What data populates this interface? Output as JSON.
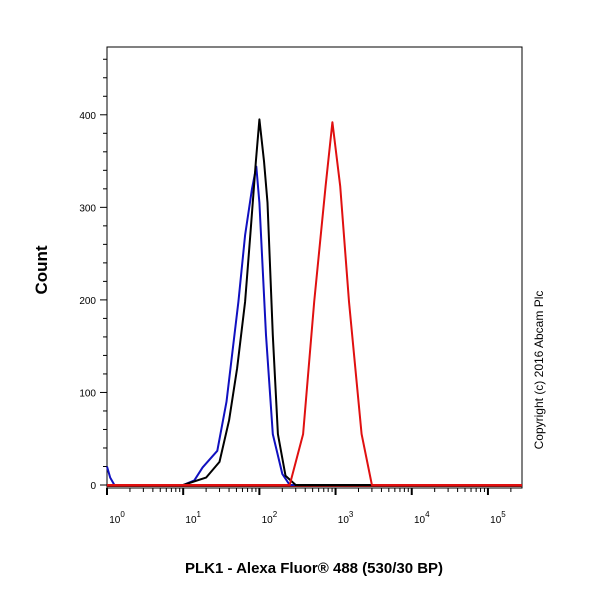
{
  "chart_data": {
    "type": "line",
    "xlabel": "PLK1 - Alexa Fluor® 488 (530/30 BP)",
    "ylabel": "Count",
    "x_scale": "log",
    "xlim": [
      1,
      280000
    ],
    "ylim": [
      0,
      470
    ],
    "x_ticks": [
      {
        "base": "10",
        "exp": "0"
      },
      {
        "base": "10",
        "exp": "1"
      },
      {
        "base": "10",
        "exp": "2"
      },
      {
        "base": "10",
        "exp": "3"
      },
      {
        "base": "10",
        "exp": "4"
      },
      {
        "base": "10",
        "exp": "5"
      }
    ],
    "y_ticks": [
      "0",
      "100",
      "200",
      "300",
      "400"
    ],
    "grid": false,
    "annotation": "Copyright (c) 2016 Abcam Plc",
    "series": [
      {
        "color": "#1010c0",
        "points": [
          [
            1,
            20
          ],
          [
            1.1,
            8
          ],
          [
            1.25,
            0
          ],
          [
            10,
            0
          ],
          [
            14,
            5
          ],
          [
            18,
            19
          ],
          [
            28,
            37
          ],
          [
            37,
            90
          ],
          [
            53,
            198
          ],
          [
            65,
            270
          ],
          [
            80,
            320
          ],
          [
            91,
            344
          ],
          [
            100,
            305
          ],
          [
            122,
            162
          ],
          [
            150,
            55
          ],
          [
            200,
            12
          ],
          [
            250,
            0
          ],
          [
            280000,
            0
          ]
        ]
      },
      {
        "color": "#000000",
        "points": [
          [
            1,
            0
          ],
          [
            10,
            0
          ],
          [
            20,
            8
          ],
          [
            30,
            25
          ],
          [
            40,
            70
          ],
          [
            51,
            126
          ],
          [
            65,
            198
          ],
          [
            76,
            270
          ],
          [
            90,
            350
          ],
          [
            100,
            395
          ],
          [
            115,
            350
          ],
          [
            128,
            305
          ],
          [
            150,
            162
          ],
          [
            175,
            55
          ],
          [
            220,
            10
          ],
          [
            300,
            0
          ],
          [
            280000,
            0
          ]
        ]
      },
      {
        "color": "#e01010",
        "points": [
          [
            1,
            0
          ],
          [
            250,
            0
          ],
          [
            375,
            55
          ],
          [
            525,
            198
          ],
          [
            740,
            323
          ],
          [
            910,
            392
          ],
          [
            1150,
            323
          ],
          [
            1500,
            198
          ],
          [
            2200,
            55
          ],
          [
            3000,
            0
          ],
          [
            280000,
            0
          ]
        ]
      }
    ]
  }
}
